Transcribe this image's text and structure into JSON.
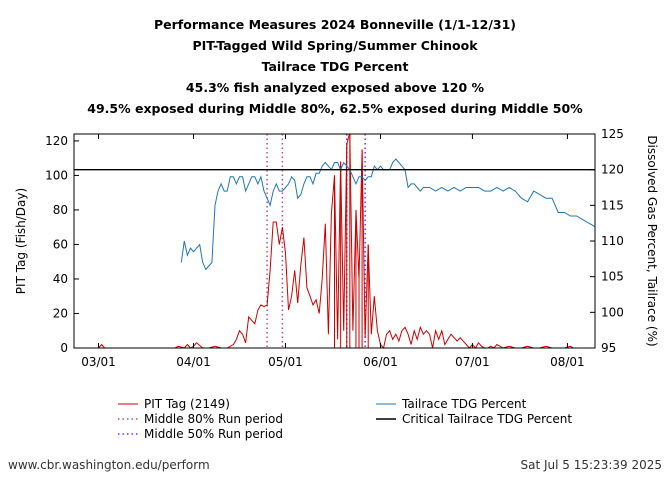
{
  "titles": {
    "line1": "Performance Measures 2024 Bonneville (1/1-12/31)",
    "line2": "PIT-Tagged Wild Spring/Summer Chinook",
    "line3": "Tailrace TDG Percent",
    "line4": "45.3% fish analyzed exposed above 120 %",
    "line5": "49.5% exposed during Middle 80%, 62.5% exposed during Middle 50%"
  },
  "footer": {
    "source": "www.cbr.washington.edu/perform",
    "timestamp": "Sat Jul  5 15:23:39 2025"
  },
  "colors": {
    "pit": "#cc0000",
    "tdg": "#1f77b4",
    "middle80": "#b24aa0",
    "middle50": "#8a2be2",
    "critical": "#000000"
  },
  "chart_data": {
    "type": "line",
    "ylabel_left": "PIT Tag (Fish/Day)",
    "ylabel_right": "Dissolved Gas Percent, Tailrace (%)",
    "xaxis": {
      "ticks": [
        {
          "day": 0,
          "label": "03/01"
        },
        {
          "day": 31,
          "label": "04/01"
        },
        {
          "day": 61,
          "label": "05/01"
        },
        {
          "day": 92,
          "label": "06/01"
        },
        {
          "day": 122,
          "label": "07/01"
        },
        {
          "day": 153,
          "label": "08/01"
        }
      ],
      "range_days": [
        -8,
        162
      ]
    },
    "yleft": {
      "range": [
        0,
        124
      ],
      "ticks": [
        0,
        20,
        40,
        60,
        80,
        100,
        120
      ]
    },
    "yright": {
      "range": [
        95,
        125
      ],
      "ticks": [
        95,
        100,
        105,
        110,
        115,
        120,
        125
      ]
    },
    "critical_tdg": 120,
    "middle80": [
      55,
      60
    ],
    "middle50": [
      81,
      87
    ],
    "legend": {
      "pit": "PIT Tag (2149)",
      "middle80": "Middle 80% Run period",
      "middle50": "Middle 50% Run period",
      "tdg": "Tailrace TDG Percent",
      "critical": "Critical Tailrace TDG Percent"
    },
    "series": [
      {
        "name": "PIT Tag (2149)",
        "axis": "left",
        "x": [
          -8,
          -6,
          0,
          1,
          2,
          10,
          20,
          25,
          26,
          28,
          29,
          30,
          31,
          32,
          34,
          36,
          38,
          40,
          42,
          44,
          45,
          46,
          47,
          48,
          49,
          50,
          51,
          52,
          53,
          54,
          55,
          56,
          57,
          58,
          59,
          60,
          61,
          62,
          63,
          64,
          65,
          66,
          67,
          68,
          69,
          70,
          71,
          72,
          73,
          74,
          75,
          76,
          77,
          78,
          79,
          80,
          81,
          82,
          83,
          84,
          85,
          86,
          87,
          88,
          89,
          90,
          91,
          92,
          93,
          94,
          95,
          96,
          97,
          98,
          99,
          100,
          101,
          102,
          103,
          104,
          105,
          106,
          107,
          108,
          109,
          110,
          111,
          112,
          113,
          114,
          115,
          116,
          117,
          118,
          119,
          120,
          121,
          122,
          123,
          124,
          125,
          126,
          127,
          128,
          129,
          130,
          132,
          134,
          136,
          138,
          140,
          142,
          144,
          146,
          148,
          150,
          152,
          154,
          155,
          156,
          158,
          160,
          162
        ],
        "y": [
          0,
          0,
          0,
          2,
          0,
          0,
          0,
          0,
          1,
          0,
          2,
          0,
          1,
          3,
          0,
          0,
          1,
          0,
          0,
          2,
          5,
          10,
          8,
          3,
          18,
          16,
          14,
          22,
          25,
          24,
          25,
          45,
          73,
          73,
          60,
          70,
          55,
          22,
          30,
          45,
          26,
          48,
          64,
          35,
          30,
          25,
          28,
          20,
          40,
          72,
          8,
          78,
          100,
          5,
          108,
          10,
          118,
          125,
          10,
          80,
          40,
          115,
          6,
          60,
          8,
          30,
          10,
          2,
          0,
          8,
          10,
          5,
          8,
          4,
          10,
          12,
          8,
          2,
          10,
          5,
          12,
          8,
          10,
          8,
          0,
          10,
          5,
          10,
          2,
          5,
          8,
          6,
          4,
          6,
          4,
          2,
          0,
          2,
          0,
          3,
          1,
          0,
          0,
          1,
          0,
          2,
          0,
          1,
          0,
          0,
          1,
          0,
          0,
          1,
          0,
          0,
          0,
          1,
          0,
          0,
          0,
          0,
          0
        ]
      },
      {
        "name": "Tailrace TDG Percent",
        "axis": "right",
        "x": [
          27,
          28,
          29,
          30,
          31,
          32,
          33,
          34,
          35,
          36,
          37,
          38,
          39,
          40,
          41,
          42,
          43,
          44,
          45,
          46,
          47,
          48,
          49,
          50,
          51,
          52,
          53,
          54,
          55,
          56,
          57,
          58,
          59,
          60,
          61,
          62,
          63,
          64,
          65,
          66,
          67,
          68,
          69,
          70,
          71,
          72,
          73,
          74,
          75,
          76,
          77,
          78,
          79,
          80,
          81,
          82,
          83,
          84,
          85,
          86,
          87,
          88,
          89,
          90,
          91,
          92,
          93,
          94,
          95,
          96,
          97,
          98,
          99,
          100,
          101,
          102,
          103,
          104,
          105,
          106,
          108,
          110,
          112,
          114,
          116,
          118,
          120,
          122,
          124,
          126,
          128,
          130,
          132,
          134,
          136,
          138,
          140,
          142,
          144,
          146,
          148,
          150,
          152,
          154,
          156,
          158,
          160,
          162
        ],
        "y": [
          107,
          110,
          108,
          109,
          108.5,
          109,
          109.5,
          107,
          106,
          106.5,
          107,
          115,
          117,
          118,
          117,
          117,
          119,
          119,
          118,
          119,
          119,
          117,
          118,
          119,
          119,
          118,
          119,
          117,
          116,
          115,
          117,
          118,
          117,
          117,
          117.5,
          118,
          119,
          118.5,
          116,
          116.5,
          118,
          119,
          119,
          118,
          119.5,
          119.5,
          120.5,
          121,
          120.5,
          120,
          121,
          121,
          120,
          121,
          120.5,
          120,
          119,
          118,
          119,
          119,
          118.5,
          119,
          119,
          120.5,
          120,
          120.5,
          120,
          120,
          120,
          121,
          121.5,
          121,
          120.5,
          120,
          117.5,
          118,
          118,
          117.5,
          117,
          117.5,
          117.5,
          117,
          117.5,
          117,
          117.5,
          117,
          117.5,
          117.5,
          117.5,
          117,
          117,
          117.5,
          117,
          117.5,
          117,
          116,
          115.5,
          117,
          116.5,
          116,
          116,
          114,
          114,
          113.5,
          113.5,
          113,
          112.5,
          112
        ]
      }
    ]
  }
}
